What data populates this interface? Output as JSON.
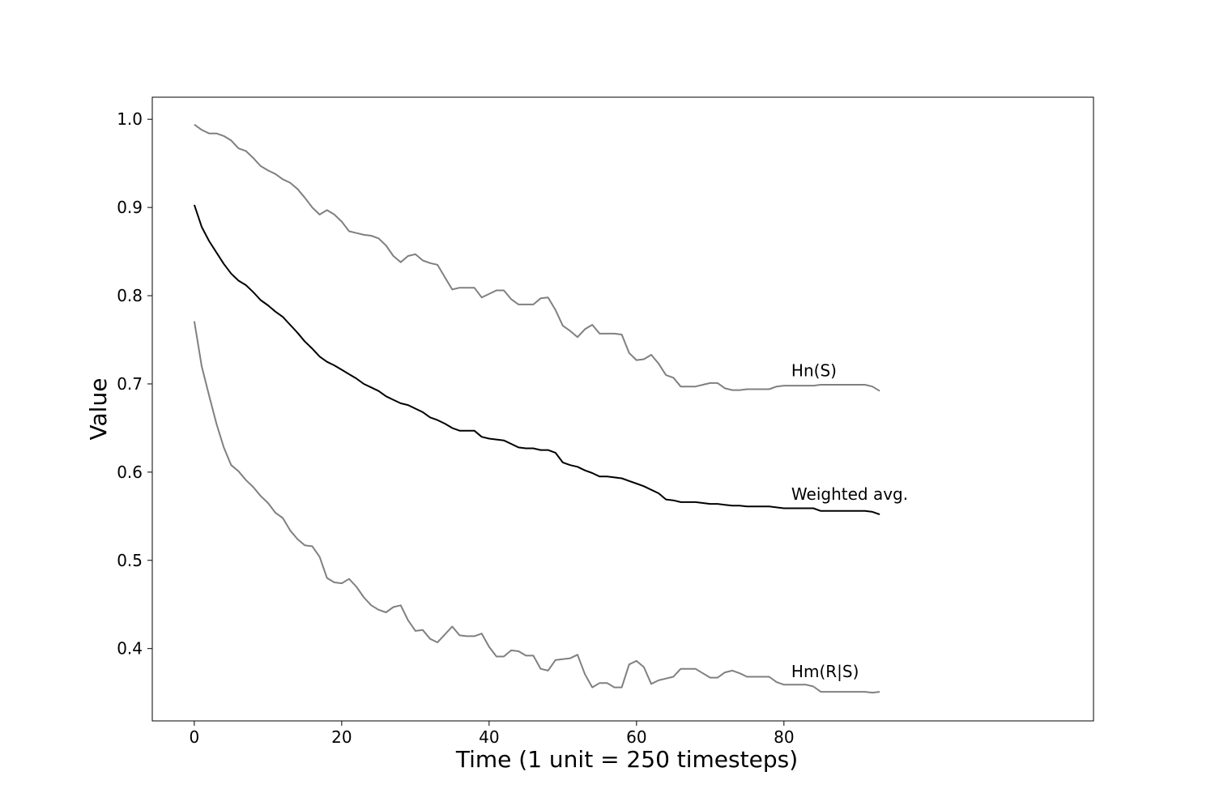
{
  "chart_data": {
    "type": "line",
    "title": "",
    "xlabel": "Time (1 unit = 250 timesteps)",
    "ylabel": "Value",
    "xlim": [
      -5.7,
      122.0
    ],
    "ylim": [
      0.318,
      1.025
    ],
    "xticks": [
      0,
      20,
      40,
      60,
      80
    ],
    "yticks": [
      0.4,
      0.5,
      0.6,
      0.7,
      0.8,
      0.9,
      1.0
    ],
    "xtick_labels": [
      "0",
      "20",
      "40",
      "60",
      "80"
    ],
    "ytick_labels": [
      "0.4",
      "0.5",
      "0.6",
      "0.7",
      "0.8",
      "0.9",
      "1.0"
    ],
    "grid": false,
    "legend": "none",
    "series": [
      {
        "name": "Hn(S)",
        "color": "#808080",
        "label_at": [
          81,
          0.715
        ],
        "x": [
          0,
          1,
          2,
          3,
          4,
          5,
          6,
          7,
          8,
          9,
          10,
          11,
          12,
          13,
          14,
          15,
          16,
          17,
          18,
          19,
          20,
          21,
          22,
          23,
          24,
          25,
          26,
          27,
          28,
          29,
          30,
          31,
          32,
          33,
          34,
          35,
          36,
          37,
          38,
          39,
          40,
          41,
          42,
          43,
          44,
          45,
          46,
          47,
          48,
          49,
          50,
          51,
          52,
          53,
          54,
          55,
          56,
          57,
          58,
          59,
          60,
          61,
          62,
          63,
          64,
          65,
          66,
          67,
          68,
          69,
          70,
          71,
          72,
          73,
          74,
          75,
          76,
          77,
          78,
          79,
          80,
          81,
          82,
          83,
          84,
          85,
          86,
          87,
          88,
          89,
          90,
          91,
          92,
          93
        ],
        "values": [
          0.994,
          0.988,
          0.984,
          0.984,
          0.981,
          0.976,
          0.967,
          0.964,
          0.956,
          0.947,
          0.942,
          0.938,
          0.932,
          0.928,
          0.921,
          0.911,
          0.9,
          0.892,
          0.897,
          0.892,
          0.884,
          0.873,
          0.871,
          0.869,
          0.868,
          0.865,
          0.857,
          0.845,
          0.838,
          0.845,
          0.847,
          0.84,
          0.837,
          0.835,
          0.821,
          0.807,
          0.809,
          0.809,
          0.809,
          0.798,
          0.802,
          0.806,
          0.806,
          0.796,
          0.79,
          0.79,
          0.79,
          0.797,
          0.798,
          0.784,
          0.766,
          0.76,
          0.753,
          0.762,
          0.767,
          0.757,
          0.757,
          0.757,
          0.756,
          0.735,
          0.727,
          0.728,
          0.733,
          0.723,
          0.71,
          0.707,
          0.697,
          0.697,
          0.697,
          0.699,
          0.701,
          0.701,
          0.695,
          0.693,
          0.693,
          0.694,
          0.694,
          0.694,
          0.694,
          0.697,
          0.698,
          0.698,
          0.698,
          0.698,
          0.698,
          0.699,
          0.699,
          0.699,
          0.699,
          0.699,
          0.699,
          0.699,
          0.697,
          0.692
        ]
      },
      {
        "name": "Weighted avg.",
        "color": "#000000",
        "label_at": [
          81,
          0.575
        ],
        "x": [
          0,
          1,
          2,
          3,
          4,
          5,
          6,
          7,
          8,
          9,
          10,
          11,
          12,
          13,
          14,
          15,
          16,
          17,
          18,
          19,
          20,
          21,
          22,
          23,
          24,
          25,
          26,
          27,
          28,
          29,
          30,
          31,
          32,
          33,
          34,
          35,
          36,
          37,
          38,
          39,
          40,
          41,
          42,
          43,
          44,
          45,
          46,
          47,
          48,
          49,
          50,
          51,
          52,
          53,
          54,
          55,
          56,
          57,
          58,
          59,
          60,
          61,
          62,
          63,
          64,
          65,
          66,
          67,
          68,
          69,
          70,
          71,
          72,
          73,
          74,
          75,
          76,
          77,
          78,
          79,
          80,
          81,
          82,
          83,
          84,
          85,
          86,
          87,
          88,
          89,
          90,
          91,
          92,
          93
        ],
        "values": [
          0.903,
          0.878,
          0.862,
          0.849,
          0.836,
          0.825,
          0.817,
          0.812,
          0.804,
          0.795,
          0.789,
          0.782,
          0.776,
          0.767,
          0.758,
          0.748,
          0.74,
          0.731,
          0.725,
          0.721,
          0.716,
          0.711,
          0.706,
          0.7,
          0.696,
          0.692,
          0.686,
          0.682,
          0.678,
          0.676,
          0.672,
          0.668,
          0.662,
          0.659,
          0.655,
          0.65,
          0.647,
          0.647,
          0.647,
          0.64,
          0.638,
          0.637,
          0.636,
          0.632,
          0.628,
          0.627,
          0.627,
          0.625,
          0.625,
          0.622,
          0.611,
          0.608,
          0.606,
          0.602,
          0.599,
          0.595,
          0.595,
          0.594,
          0.593,
          0.59,
          0.587,
          0.584,
          0.58,
          0.576,
          0.569,
          0.568,
          0.566,
          0.566,
          0.566,
          0.565,
          0.564,
          0.564,
          0.563,
          0.562,
          0.562,
          0.561,
          0.561,
          0.561,
          0.561,
          0.56,
          0.559,
          0.559,
          0.559,
          0.559,
          0.559,
          0.556,
          0.556,
          0.556,
          0.556,
          0.556,
          0.556,
          0.556,
          0.555,
          0.552
        ]
      },
      {
        "name": "Hm(R|S)",
        "color": "#808080",
        "label_at": [
          81,
          0.374
        ],
        "x": [
          0,
          1,
          2,
          3,
          4,
          5,
          6,
          7,
          8,
          9,
          10,
          11,
          12,
          13,
          14,
          15,
          16,
          17,
          18,
          19,
          20,
          21,
          22,
          23,
          24,
          25,
          26,
          27,
          28,
          29,
          30,
          31,
          32,
          33,
          34,
          35,
          36,
          37,
          38,
          39,
          40,
          41,
          42,
          43,
          44,
          45,
          46,
          47,
          48,
          49,
          50,
          51,
          52,
          53,
          54,
          55,
          56,
          57,
          58,
          59,
          60,
          61,
          62,
          63,
          64,
          65,
          66,
          67,
          68,
          69,
          70,
          71,
          72,
          73,
          74,
          75,
          76,
          77,
          78,
          79,
          80,
          81,
          82,
          83,
          84,
          85,
          86,
          87,
          88,
          89,
          90,
          91,
          92,
          93
        ],
        "values": [
          0.771,
          0.72,
          0.687,
          0.655,
          0.628,
          0.608,
          0.601,
          0.591,
          0.583,
          0.573,
          0.565,
          0.554,
          0.548,
          0.534,
          0.524,
          0.517,
          0.516,
          0.504,
          0.48,
          0.475,
          0.474,
          0.479,
          0.47,
          0.458,
          0.449,
          0.444,
          0.441,
          0.447,
          0.449,
          0.432,
          0.42,
          0.421,
          0.411,
          0.407,
          0.416,
          0.425,
          0.415,
          0.414,
          0.414,
          0.417,
          0.402,
          0.391,
          0.391,
          0.398,
          0.397,
          0.392,
          0.392,
          0.377,
          0.375,
          0.387,
          0.388,
          0.389,
          0.393,
          0.371,
          0.356,
          0.361,
          0.361,
          0.356,
          0.356,
          0.382,
          0.386,
          0.379,
          0.36,
          0.364,
          0.366,
          0.368,
          0.377,
          0.377,
          0.377,
          0.372,
          0.367,
          0.367,
          0.373,
          0.375,
          0.372,
          0.368,
          0.368,
          0.368,
          0.368,
          0.362,
          0.359,
          0.359,
          0.359,
          0.359,
          0.357,
          0.351,
          0.351,
          0.351,
          0.351,
          0.351,
          0.351,
          0.351,
          0.35,
          0.351
        ]
      }
    ]
  }
}
